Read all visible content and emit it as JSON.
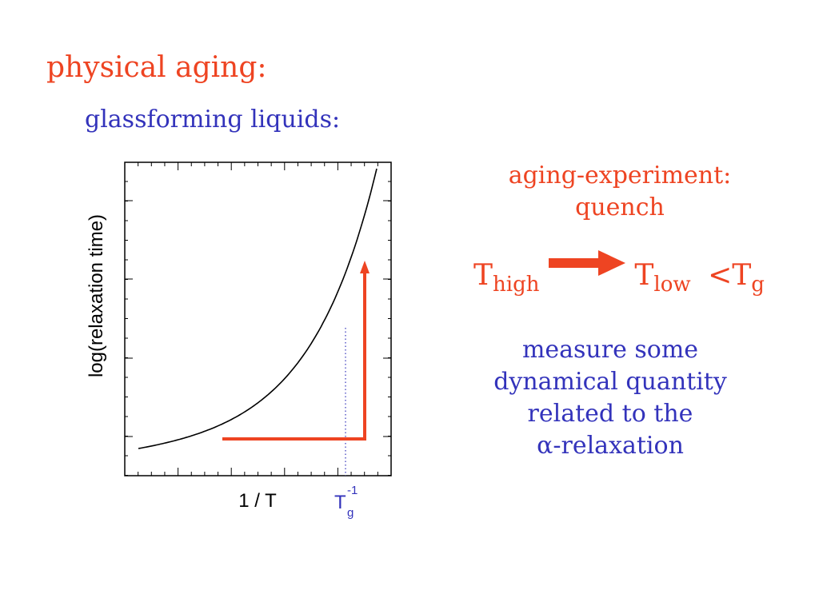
{
  "title": "physical aging:",
  "subtitle": "glassforming liquids:",
  "diagram": {
    "ylabel": "log(relaxation time)",
    "xlabel": "1 / T",
    "tg_marker": {
      "base": "T",
      "sub": "g",
      "sup": "-1"
    },
    "colors": {
      "curve": "#000000",
      "quench_path": "#ee4422",
      "tg_line": "#3333bb"
    }
  },
  "experiment": {
    "title_line1": "aging-experiment:",
    "title_line2": "quench",
    "t_high": {
      "base": "T",
      "sub": "high"
    },
    "t_low": {
      "base": "T",
      "sub": "low"
    },
    "lt": "<",
    "t_g": {
      "base": "T",
      "sub": "g"
    },
    "arrow_color": "#ee4422"
  },
  "measure": {
    "line1": "measure some",
    "line2": "dynamical quantity",
    "line3": "related to the",
    "line4": "α-relaxation"
  }
}
